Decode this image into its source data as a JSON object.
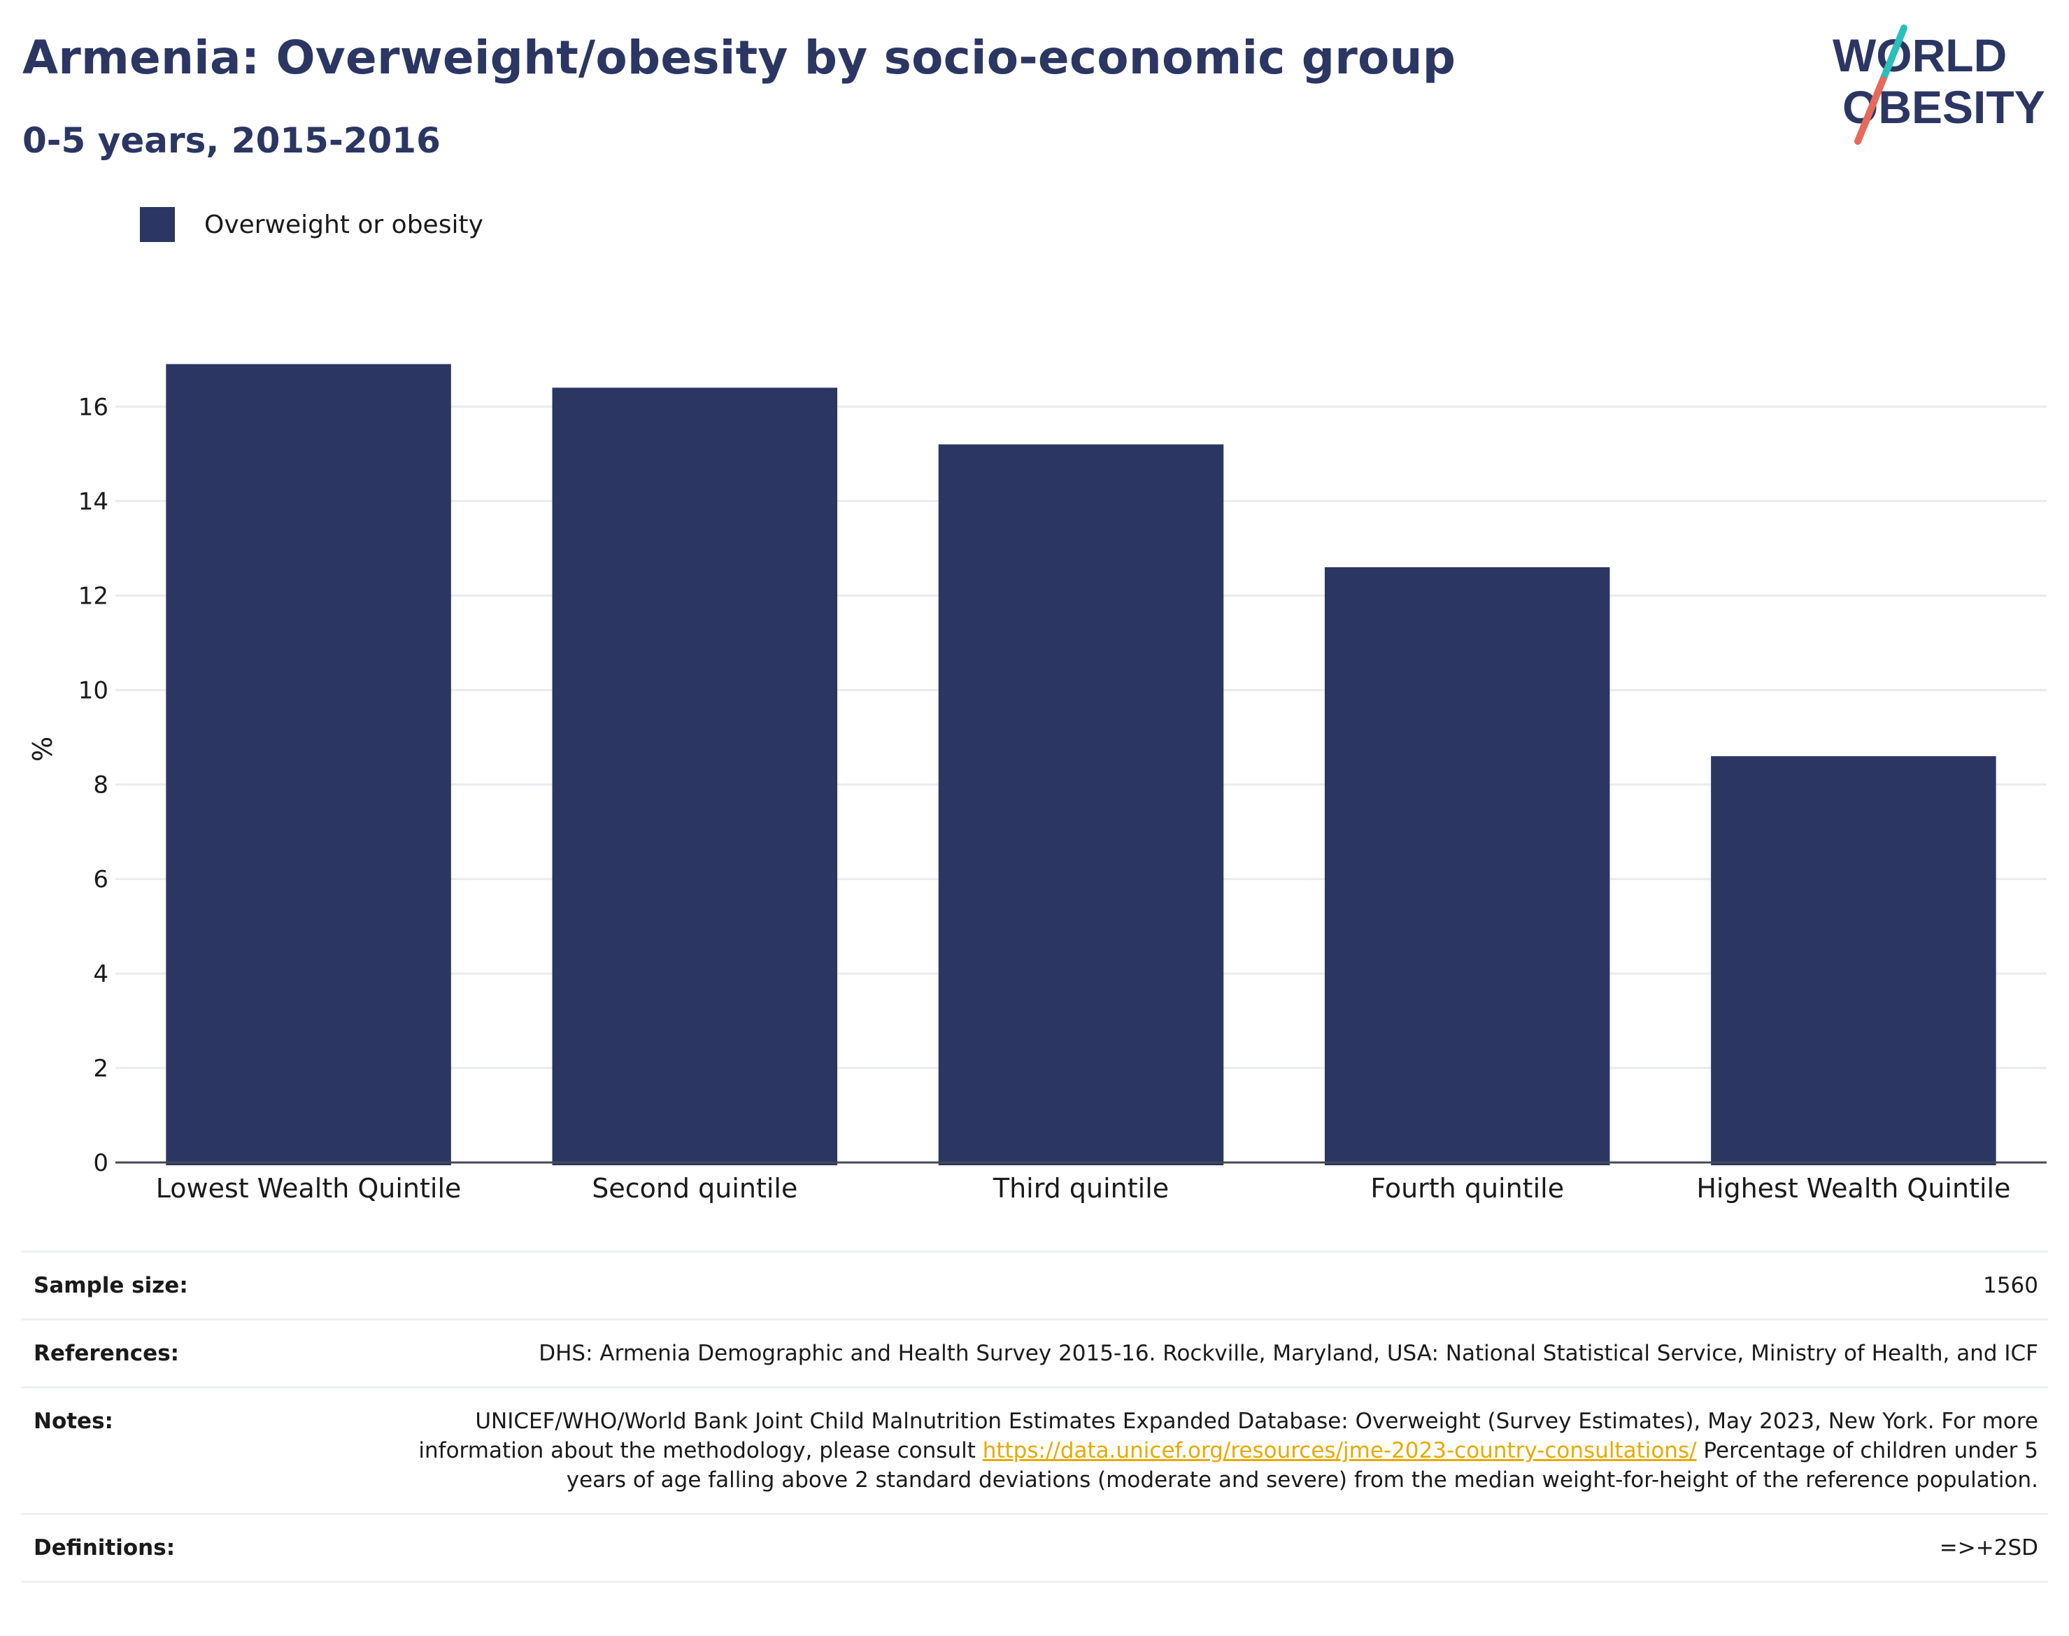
{
  "header": {
    "title": "Armenia: Overweight/obesity by socio-economic group",
    "subtitle": "0-5 years, 2015-2016"
  },
  "logo": {
    "line1": "WORLD",
    "line2": "OBESITY",
    "accent_teal": "#2bbfb9",
    "accent_coral": "#e8685a",
    "brand_navy": "#2b3663"
  },
  "legend": {
    "label": "Overweight or obesity",
    "color": "#2b3663"
  },
  "chart_data": {
    "type": "bar",
    "categories": [
      "Lowest Wealth Quintile",
      "Second quintile",
      "Third quintile",
      "Fourth quintile",
      "Highest Wealth Quintile"
    ],
    "series": [
      {
        "name": "Overweight or obesity",
        "values": [
          16.9,
          16.4,
          15.2,
          12.6,
          8.6
        ],
        "color": "#2b3663"
      }
    ],
    "ylabel": "%",
    "ylim": [
      0,
      17.5
    ],
    "yticks": [
      "0",
      "2",
      "4",
      "6",
      "8",
      "10",
      "12",
      "14",
      "16"
    ],
    "grid": true,
    "legend_position": "top-left"
  },
  "meta": {
    "sample_size_label": "Sample size:",
    "sample_size_value": "1560",
    "references_label": "References:",
    "references_value": "DHS: Armenia Demographic and Health Survey 2015-16. Rockville, Maryland, USA: National Statistical Service, Ministry of Health, and ICF",
    "notes_label": "Notes:",
    "notes_text_1": "UNICEF/WHO/World Bank Joint Child Malnutrition Estimates Expanded Database: Overweight (Survey Estimates), May 2023, New York. For more information about the methodology, please consult ",
    "notes_link": "https://data.unicef.org/resources/jme-2023-country-consultations/",
    "notes_text_2": "Percentage of children under 5 years of age falling above 2 standard deviations (moderate and severe) from the median weight-for-height of the reference population.",
    "definitions_label": "Definitions:",
    "definitions_value": "=>+2SD"
  }
}
